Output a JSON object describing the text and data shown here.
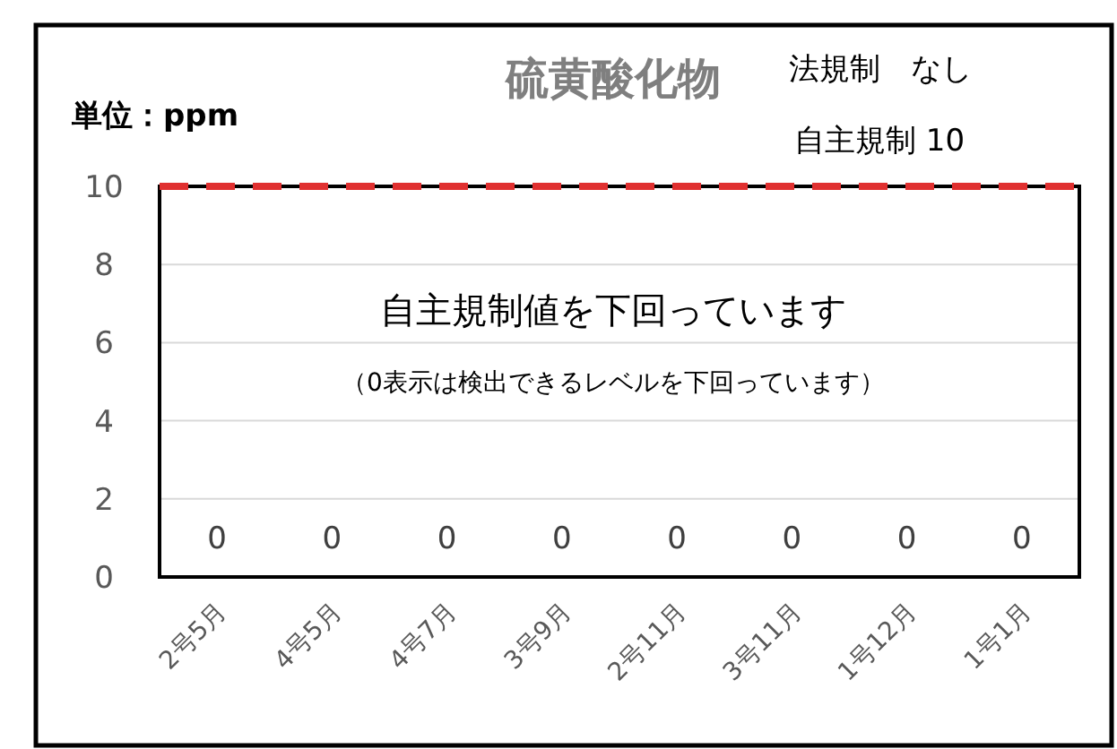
{
  "chart_data": {
    "type": "bar",
    "title": "硫黄酸化物",
    "ylabel": "単位：ppm",
    "annotations": [
      "法規制　なし",
      "自主規制 10",
      "自主規制値を下回っています",
      "（0表示は検出できるレベルを下回っています）"
    ],
    "categories": [
      "2号5月",
      "4号5月",
      "4号7月",
      "3号9月",
      "2号11月",
      "3号11月",
      "1号12月",
      "1号1月"
    ],
    "values": [
      0,
      0,
      0,
      0,
      0,
      0,
      0,
      0
    ],
    "ylim": [
      0,
      10
    ],
    "yticks": [
      0,
      2,
      4,
      6,
      8,
      10
    ],
    "grid": "y",
    "data_labels": true,
    "ref_lines": [
      {
        "axis": "y",
        "value": 10,
        "color": "#e03030",
        "line_style": "dashed"
      }
    ]
  }
}
